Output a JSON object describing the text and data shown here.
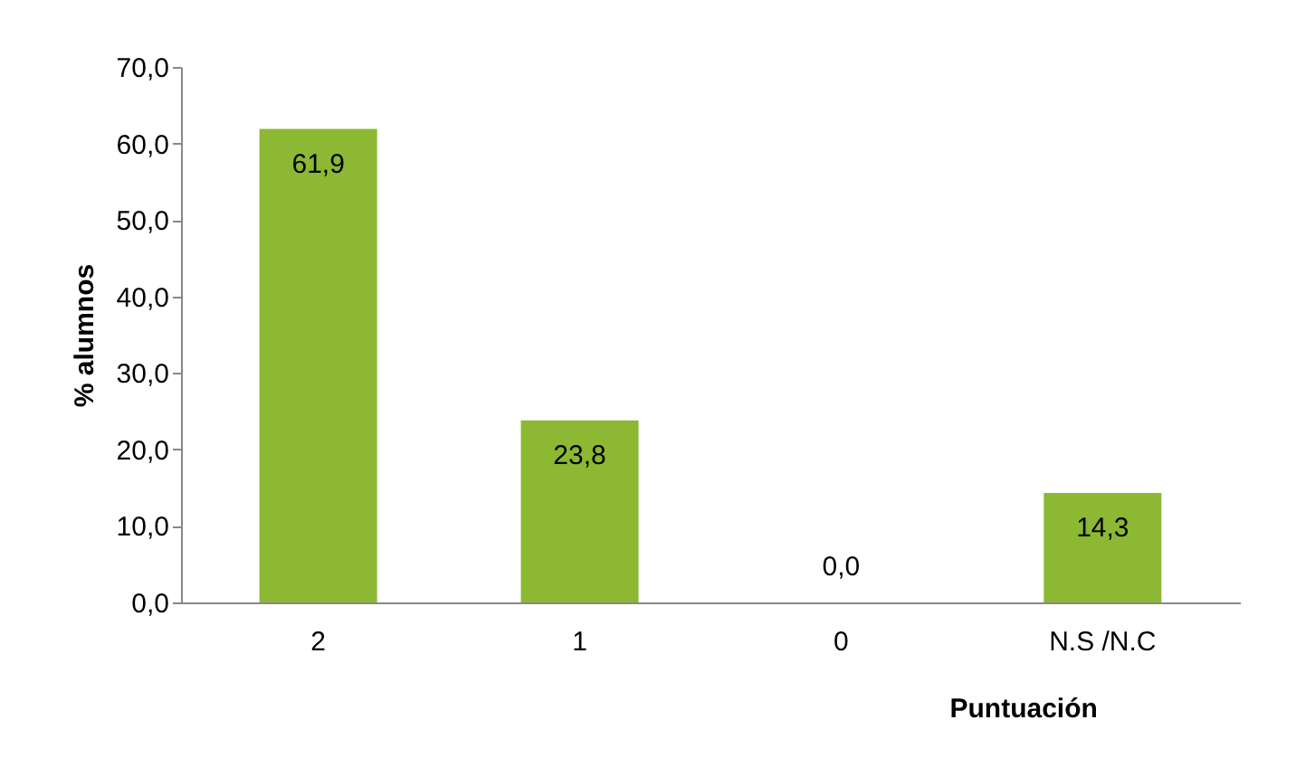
{
  "chart_data": {
    "type": "bar",
    "xlabel": "Puntuación",
    "ylabel": "% alumnos",
    "categories": [
      "2",
      "1",
      "0",
      "N.S /N.C"
    ],
    "values": [
      61.9,
      23.8,
      0.0,
      14.3
    ],
    "value_labels": [
      "61,9",
      "23,8",
      "0,0",
      "14,3"
    ],
    "color": "#8cb833",
    "ylim": [
      0,
      70
    ],
    "yticks": [
      {
        "value": 0,
        "label": "0,0"
      },
      {
        "value": 10,
        "label": "10,0"
      },
      {
        "value": 20,
        "label": "20,0"
      },
      {
        "value": 30,
        "label": "30,0"
      },
      {
        "value": 40,
        "label": "40,0"
      },
      {
        "value": 50,
        "label": "50,0"
      },
      {
        "value": 60,
        "label": "60,0"
      },
      {
        "value": 70,
        "label": "70,0"
      }
    ],
    "grid": false
  }
}
